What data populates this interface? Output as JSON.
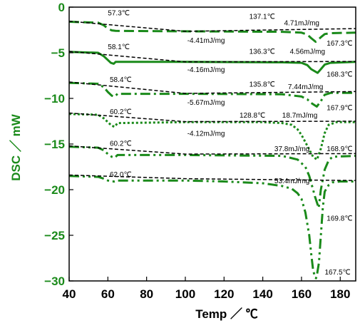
{
  "chart_data": {
    "type": "line",
    "xlabel": "Temp ／ ℃",
    "ylabel": "DSC ／ mW",
    "xlim": [
      40,
      188
    ],
    "ylim": [
      -30,
      0
    ],
    "xticks": [
      40,
      60,
      80,
      100,
      120,
      140,
      160,
      180
    ],
    "yticks": [
      0,
      -5,
      -10,
      -15,
      -20,
      -25,
      -30
    ],
    "grid": false,
    "legend": "none",
    "colors": {
      "curve": "#1a8a1a",
      "baseline": "#000000",
      "axis_text": "#1a8a1a"
    },
    "series": [
      {
        "dash": "14,6",
        "x": [
          40,
          55,
          58,
          60,
          62,
          64,
          100,
          150,
          160,
          163,
          165,
          167.3,
          170,
          172,
          175,
          188
        ],
        "y": [
          -1.6,
          -1.7,
          -2.0,
          -2.35,
          -2.55,
          -2.6,
          -2.65,
          -2.7,
          -2.8,
          -3.0,
          -3.4,
          -3.8,
          -3.3,
          -2.95,
          -2.85,
          -2.8
        ]
      },
      {
        "dash": "",
        "x": [
          40,
          55,
          58,
          60,
          61.5,
          63,
          64,
          100,
          150,
          160,
          163,
          165,
          168.3,
          170,
          172,
          175,
          188
        ],
        "y": [
          -4.9,
          -5.0,
          -5.4,
          -5.8,
          -6.1,
          -6.2,
          -6.0,
          -6.0,
          -6.05,
          -6.1,
          -6.35,
          -6.8,
          -7.2,
          -6.8,
          -6.3,
          -6.1,
          -6.0
        ]
      },
      {
        "dash": "14,5,3,5",
        "x": [
          40,
          55,
          58,
          60,
          62,
          63.5,
          65,
          100,
          150,
          160,
          163,
          165,
          167.9,
          170,
          172,
          175,
          188
        ],
        "y": [
          -8.3,
          -8.4,
          -8.8,
          -9.3,
          -9.7,
          -9.8,
          -9.5,
          -9.5,
          -9.55,
          -9.8,
          -10.1,
          -10.5,
          -10.9,
          -10.3,
          -9.6,
          -9.4,
          -9.4
        ]
      },
      {
        "dash": "3,3",
        "x": [
          40,
          55,
          58,
          60,
          62,
          63.5,
          65,
          100,
          140,
          150,
          155,
          158,
          160,
          162,
          164,
          166,
          168,
          170,
          172,
          174,
          178,
          188
        ],
        "y": [
          -11.7,
          -11.8,
          -12.2,
          -12.6,
          -13.0,
          -13.1,
          -12.7,
          -12.6,
          -12.6,
          -12.7,
          -12.9,
          -13.4,
          -14.0,
          -14.8,
          -15.6,
          -16.4,
          -16.7,
          -15.5,
          -13.8,
          -12.9,
          -12.6,
          -12.6
        ]
      },
      {
        "dash": "14,5,3,5,3,5",
        "x": [
          40,
          55,
          58,
          60,
          62,
          63.5,
          65,
          100,
          150,
          158,
          162,
          164,
          166,
          167,
          168.9,
          170,
          172,
          174,
          176,
          188
        ],
        "y": [
          -15.3,
          -15.4,
          -15.7,
          -16.1,
          -16.4,
          -16.5,
          -16.2,
          -16.2,
          -16.3,
          -16.7,
          -17.5,
          -18.5,
          -20.0,
          -20.8,
          -22.0,
          -20.0,
          -17.8,
          -16.8,
          -16.4,
          -16.3
        ]
      },
      {
        "dash": "14,5,3,5,3,5",
        "x": [
          40,
          55,
          58,
          60,
          62,
          63.5,
          65,
          100,
          120,
          140,
          150,
          155,
          158,
          160,
          162,
          164,
          165,
          166,
          167,
          167.5,
          168,
          169,
          170,
          171,
          172,
          174,
          176,
          180,
          188
        ],
        "y": [
          -18.5,
          -18.6,
          -18.8,
          -19.0,
          -19.1,
          -19.1,
          -19.0,
          -19.0,
          -19.1,
          -19.3,
          -19.6,
          -19.9,
          -20.4,
          -21.0,
          -22.5,
          -25.0,
          -27.0,
          -28.8,
          -29.6,
          -29.7,
          -29.3,
          -28.0,
          -25.0,
          -22.0,
          -20.2,
          -19.5,
          -19.2,
          -19.1,
          -19.1
        ]
      }
    ],
    "baselines": [
      {
        "x": [
          40,
          100,
          188
        ],
        "y": [
          -1.55,
          -2.65,
          -2.35
        ]
      },
      {
        "x": [
          40,
          100,
          188
        ],
        "y": [
          -4.85,
          -6.0,
          -5.95
        ]
      },
      {
        "x": [
          40,
          100,
          188
        ],
        "y": [
          -8.2,
          -9.45,
          -9.25
        ]
      },
      {
        "x": [
          40,
          100,
          188
        ],
        "y": [
          -11.6,
          -12.55,
          -12.5
        ]
      },
      {
        "x": [
          40,
          100,
          188
        ],
        "y": [
          -15.2,
          -16.1,
          -16.05
        ]
      },
      {
        "x": [
          40,
          100,
          188
        ],
        "y": [
          -18.4,
          -18.8,
          -19.0
        ]
      }
    ],
    "annotations": [
      {
        "text": "57.3℃",
        "x": 60,
        "y": -0.9
      },
      {
        "text": "137.1℃",
        "x": 133,
        "y": -1.3
      },
      {
        "text": "4.71mJ/mg",
        "x": 151,
        "y": -2.0
      },
      {
        "text": "-4.41mJ/mg",
        "x": 101,
        "y": -3.9
      },
      {
        "text": "167.3℃",
        "x": 173,
        "y": -4.2
      },
      {
        "text": "58.1℃",
        "x": 60,
        "y": -4.6
      },
      {
        "text": "136.3℃",
        "x": 133,
        "y": -5.1
      },
      {
        "text": "4.56mJ/mg",
        "x": 154,
        "y": -5.1
      },
      {
        "text": "-4.16mJ/mg",
        "x": 101,
        "y": -7.1
      },
      {
        "text": "168.3℃",
        "x": 173,
        "y": -7.6
      },
      {
        "text": "58.4℃",
        "x": 61,
        "y": -8.2
      },
      {
        "text": "135.8℃",
        "x": 133,
        "y": -8.7
      },
      {
        "text": "7.44mJ/mg",
        "x": 153,
        "y": -9.0
      },
      {
        "text": "-5.67mJ/mg",
        "x": 101,
        "y": -10.7
      },
      {
        "text": "167.9℃",
        "x": 173,
        "y": -11.3
      },
      {
        "text": "60.2℃",
        "x": 61,
        "y": -11.7
      },
      {
        "text": "128.8℃",
        "x": 128,
        "y": -12.1
      },
      {
        "text": "18.7mJ/mg",
        "x": 150,
        "y": -12.1
      },
      {
        "text": "-4.12mJ/mg",
        "x": 101,
        "y": -14.1
      },
      {
        "text": "60.2℃",
        "x": 61,
        "y": -15.2
      },
      {
        "text": "37.8mJ/mg",
        "x": 146,
        "y": -15.8
      },
      {
        "text": "168.9℃",
        "x": 173,
        "y": -15.8
      },
      {
        "text": "62.0℃",
        "x": 61,
        "y": -18.6
      },
      {
        "text": "53.4mJ/mg",
        "x": 146,
        "y": -19.3
      },
      {
        "text": "169.8℃",
        "x": 173,
        "y": -23.4
      },
      {
        "text": "167.5℃",
        "x": 172,
        "y": -29.3
      }
    ]
  }
}
